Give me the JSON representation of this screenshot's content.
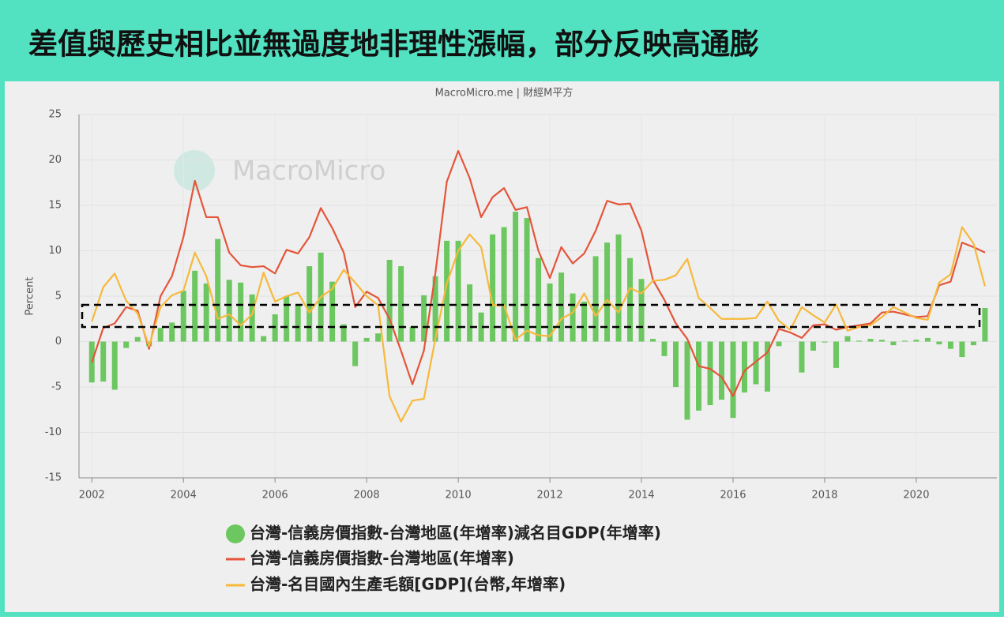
{
  "header": {
    "title": "差值與歷史相比並無過度地非理性漲幅，部分反映高通膨"
  },
  "chart_data": {
    "type": "bar",
    "subtitle": "MacroMicro.me | 財經M平方",
    "watermark": "MacroMicro",
    "y_label": "Percent",
    "grid": true,
    "xlim": [
      2001.72,
      2021.76
    ],
    "ylim": [
      -15,
      25
    ],
    "xticks": [
      2002,
      2004,
      2006,
      2008,
      2010,
      2012,
      2014,
      2016,
      2018,
      2020
    ],
    "yticks": [
      -15,
      -10,
      -5,
      0,
      5,
      10,
      15,
      20,
      25
    ],
    "x": [
      2002,
      2002.25,
      2002.5,
      2002.75,
      2003,
      2003.25,
      2003.5,
      2003.75,
      2004,
      2004.25,
      2004.5,
      2004.75,
      2005,
      2005.25,
      2005.5,
      2005.75,
      2006,
      2006.25,
      2006.5,
      2006.75,
      2007,
      2007.25,
      2007.5,
      2007.75,
      2008,
      2008.25,
      2008.5,
      2008.75,
      2009,
      2009.25,
      2009.5,
      2009.75,
      2010,
      2010.25,
      2010.5,
      2010.75,
      2011,
      2011.25,
      2011.5,
      2011.75,
      2012,
      2012.25,
      2012.5,
      2012.75,
      2013,
      2013.25,
      2013.5,
      2013.75,
      2014,
      2014.25,
      2014.5,
      2014.75,
      2015,
      2015.25,
      2015.5,
      2015.75,
      2016,
      2016.25,
      2016.5,
      2016.75,
      2017,
      2017.25,
      2017.5,
      2017.75,
      2018,
      2018.25,
      2018.5,
      2018.75,
      2019,
      2019.25,
      2019.5,
      2019.75,
      2020,
      2020.25,
      2020.5,
      2020.75,
      2021,
      2021.25,
      2021.5
    ],
    "series": [
      {
        "name": "台灣-信義房價指數-台灣地區(年增率)減名目GDP(年增率)",
        "type": "bar",
        "color": "#6cc760",
        "values": [
          -4.5,
          -4.4,
          -5.3,
          -0.7,
          0.5,
          -0.5,
          1.5,
          2.1,
          5.6,
          7.8,
          6.4,
          11.3,
          6.8,
          6.5,
          5.2,
          0.6,
          3.0,
          5.0,
          4.0,
          8.3,
          9.8,
          6.6,
          1.9,
          -2.7,
          0.4,
          0.9,
          9.0,
          8.3,
          1.6,
          5.1,
          7.2,
          11.1,
          11.1,
          6.3,
          3.2,
          11.8,
          12.6,
          14.3,
          13.6,
          9.2,
          6.4,
          7.6,
          5.3,
          4.4,
          9.4,
          10.9,
          11.8,
          9.2,
          6.9,
          0.3,
          -1.6,
          -5.0,
          -8.6,
          -7.6,
          -7.0,
          -6.4,
          -8.4,
          -5.6,
          -4.7,
          -5.5,
          -0.5,
          0.0,
          -3.4,
          -1.0,
          -0.1,
          -2.9,
          0.6,
          0.1,
          0.3,
          0.2,
          -0.4,
          0.1,
          0.2,
          0.4,
          -0.3,
          -0.8,
          -1.7,
          -0.4,
          3.7
        ]
      },
      {
        "name": "台灣-信義房價指數-台灣地區(年增率)",
        "type": "line",
        "color": "#e4553a",
        "values": [
          -2.3,
          1.5,
          2.0,
          3.8,
          3.4,
          -0.8,
          5.0,
          7.2,
          11.5,
          17.7,
          13.7,
          13.7,
          9.8,
          8.4,
          8.2,
          8.3,
          7.5,
          10.1,
          9.7,
          11.5,
          14.7,
          12.5,
          9.8,
          3.8,
          5.5,
          4.8,
          2.5,
          -1.0,
          -4.7,
          -1.0,
          7.5,
          17.6,
          21.0,
          18.0,
          13.7,
          15.9,
          16.9,
          14.5,
          14.8,
          10.0,
          7.0,
          10.4,
          8.6,
          9.7,
          12.2,
          15.5,
          15.1,
          15.2,
          12.2,
          6.8,
          4.6,
          2.0,
          0.3,
          -2.7,
          -3.0,
          -3.9,
          -6.0,
          -3.2,
          -2.2,
          -1.2,
          1.4,
          1.0,
          0.4,
          1.8,
          1.9,
          1.3,
          1.6,
          1.8,
          2.0,
          3.2,
          3.3,
          3.0,
          2.7,
          2.8,
          6.2,
          6.6,
          10.9,
          10.4,
          9.8
        ]
      },
      {
        "name": "台灣-名目國內生產毛額[GDP](台幣,年增率)",
        "type": "line",
        "color": "#f6b93b",
        "values": [
          2.2,
          6.0,
          7.5,
          4.5,
          3.1,
          -0.5,
          3.8,
          5.1,
          5.6,
          9.8,
          7.2,
          2.5,
          3.0,
          1.8,
          3.0,
          7.6,
          4.4,
          5.0,
          5.4,
          3.2,
          4.9,
          5.8,
          7.9,
          6.5,
          5.0,
          4.0,
          -6.0,
          -8.8,
          -6.5,
          -6.3,
          0.3,
          6.4,
          10.0,
          11.8,
          10.4,
          4.0,
          4.0,
          0.2,
          1.2,
          0.7,
          0.6,
          2.5,
          3.2,
          5.3,
          2.8,
          4.6,
          3.2,
          5.9,
          5.3,
          6.7,
          6.8,
          7.3,
          9.1,
          4.8,
          3.7,
          2.5,
          2.5,
          2.5,
          2.6,
          4.4,
          2.3,
          1.3,
          3.8,
          2.9,
          2.1,
          4.1,
          1.2,
          1.6,
          1.8,
          2.7,
          3.8,
          3.2,
          2.6,
          2.4,
          6.5,
          7.4,
          12.6,
          10.8,
          6.1
        ]
      }
    ]
  }
}
